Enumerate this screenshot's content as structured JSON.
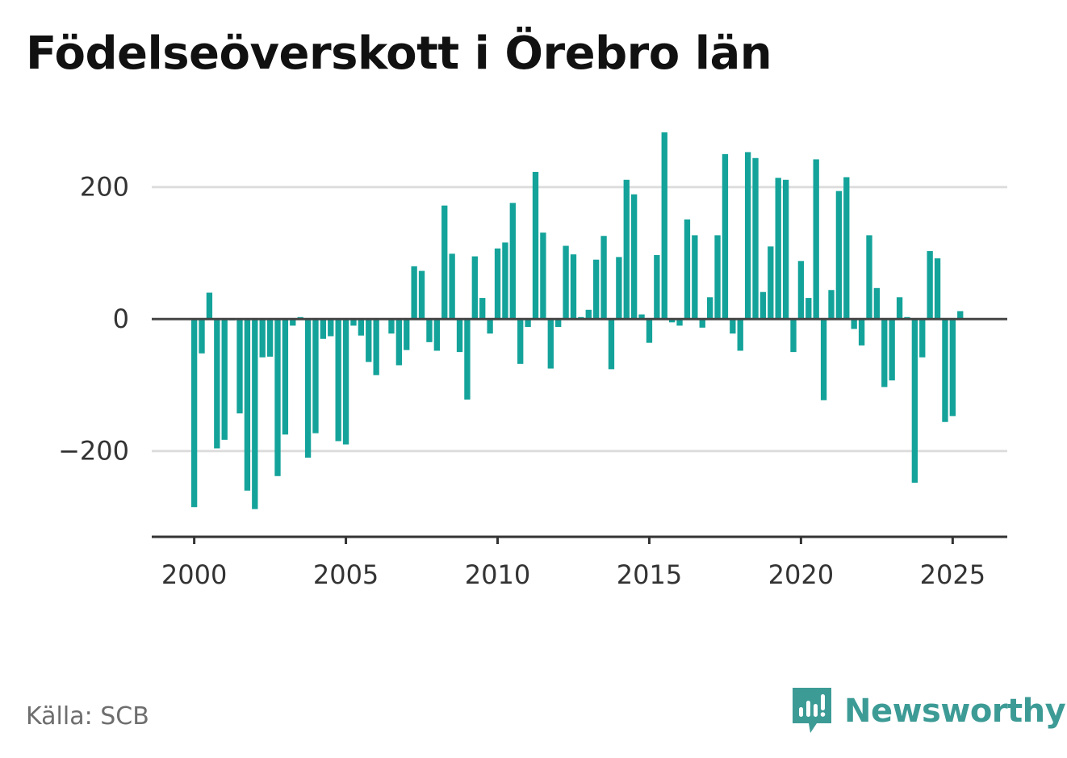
{
  "title": "Födelseöverskott i Örebro län",
  "source": "Källa: SCB",
  "brand": {
    "name": "Newsworthy",
    "icon": "newsworthy-logo-icon",
    "color": "#3d9b96"
  },
  "colors": {
    "bar": "#14a39a",
    "grid": "#dddddd",
    "zero_line": "#444444",
    "axis": "#333333"
  },
  "chart_data": {
    "type": "bar",
    "title": "Födelseöverskott i Örebro län",
    "xlabel": "",
    "ylabel": "",
    "x_unit": "year",
    "x_start": 2000.0,
    "x_step": 0.25,
    "values": [
      -285,
      -52,
      40,
      -196,
      -183,
      -2,
      -143,
      -260,
      -288,
      -58,
      -57,
      -238,
      -175,
      -10,
      3,
      -210,
      -173,
      -30,
      -26,
      -185,
      -190,
      -10,
      -25,
      -65,
      -85,
      0,
      -22,
      -70,
      -47,
      80,
      73,
      -35,
      -48,
      172,
      99,
      -50,
      -122,
      95,
      32,
      -22,
      107,
      116,
      176,
      -68,
      -12,
      223,
      131,
      -75,
      -12,
      111,
      98,
      3,
      14,
      90,
      126,
      -76,
      94,
      211,
      189,
      7,
      -36,
      97,
      283,
      -5,
      -10,
      151,
      127,
      -13,
      33,
      127,
      250,
      -22,
      -48,
      253,
      244,
      41,
      110,
      214,
      211,
      -50,
      88,
      32,
      242,
      -123,
      44,
      194,
      215,
      -15,
      -40,
      127,
      47,
      -103,
      -93,
      33,
      3,
      -248,
      -58,
      103,
      92,
      -156,
      -147,
      12
    ],
    "xlim": [
      1998.6,
      2026.8
    ],
    "ylim": [
      -330,
      300
    ],
    "x_ticks": [
      2000,
      2005,
      2010,
      2015,
      2020,
      2025
    ],
    "y_ticks": [
      -200,
      0,
      200
    ],
    "grid": true,
    "legend": "none"
  }
}
